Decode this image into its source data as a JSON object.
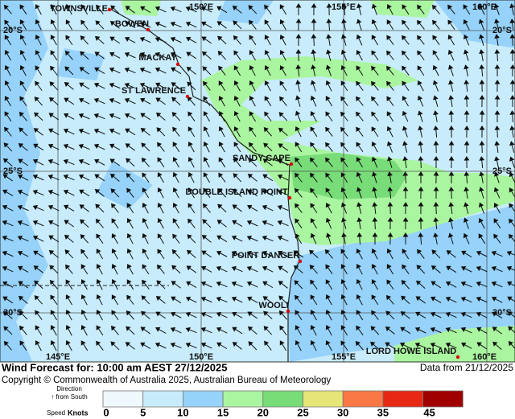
{
  "map": {
    "lon_labels_top": [
      "150°E",
      "155°E",
      "160°E"
    ],
    "lon_labels_bottom": [
      "145°E",
      "150°E",
      "155°E",
      "160°E"
    ],
    "lat_labels_left": [
      "20°S",
      "25°S",
      "30°S"
    ],
    "lat_labels_right": [
      "20°S",
      "25°S",
      "30°S"
    ],
    "places": [
      "TOWNSVILLE",
      "BOWEN",
      "MACKAY",
      "ST LAWRENCE",
      "SANDY CAPE",
      "DOUBLE ISLAND POINT",
      "POINT DANGER",
      "WOOLI",
      "LORD HOWE ISLAND"
    ]
  },
  "footer": {
    "title": "Wind Forecast for: 10:00 am AEST 27/12/2025",
    "data_from": "Data from 21/12/2025",
    "copyright": "Copyright © Commonwealth of Australia 2025, Australian Bureau of Meteorology"
  },
  "legend": {
    "direction": "Direction",
    "from_south": "↑ from South",
    "speed": "Speed",
    "units": "Knots",
    "bins": [
      0,
      5,
      10,
      15,
      20,
      25,
      30,
      35,
      45
    ],
    "colors": [
      "#eef8fd",
      "#c8ecfc",
      "#96d2fa",
      "#aaf5a0",
      "#78dc78",
      "#e6e678",
      "#fa7846",
      "#e62814",
      "#a00000"
    ]
  }
}
